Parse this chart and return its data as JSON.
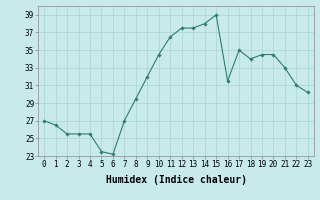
{
  "x": [
    0,
    1,
    2,
    3,
    4,
    5,
    6,
    7,
    8,
    9,
    10,
    11,
    12,
    13,
    14,
    15,
    16,
    17,
    18,
    19,
    20,
    21,
    22,
    23
  ],
  "y": [
    27,
    26.5,
    25.5,
    25.5,
    25.5,
    23.5,
    23.2,
    27,
    29.5,
    32,
    34.5,
    36.5,
    37.5,
    37.5,
    38,
    39,
    31.5,
    35,
    34,
    34.5,
    34.5,
    33,
    31,
    30.2
  ],
  "line_color": "#2e7d6e",
  "marker": "D",
  "marker_size": 1.8,
  "bg_color": "#c8eaea",
  "grid_color": "#aad4d4",
  "xlabel": "Humidex (Indice chaleur)",
  "xlim": [
    -0.5,
    23.5
  ],
  "ylim": [
    23,
    40
  ],
  "yticks": [
    23,
    25,
    27,
    29,
    31,
    33,
    35,
    37,
    39
  ],
  "xticks": [
    0,
    1,
    2,
    3,
    4,
    5,
    6,
    7,
    8,
    9,
    10,
    11,
    12,
    13,
    14,
    15,
    16,
    17,
    18,
    19,
    20,
    21,
    22,
    23
  ],
  "tick_fontsize": 5.5,
  "label_fontsize": 7.0
}
